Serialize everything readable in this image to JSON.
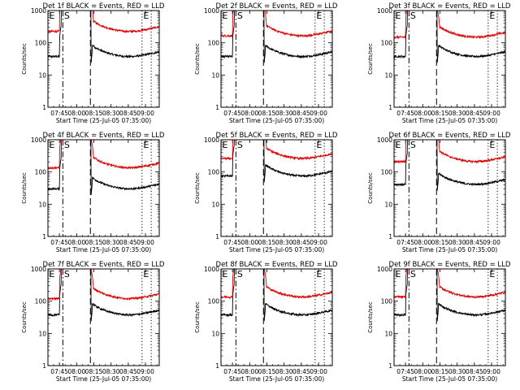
{
  "chart_data": {
    "type": "line",
    "panel_count": 9,
    "grid": "3x3",
    "y_scale": "log",
    "ylim": [
      1,
      1000
    ],
    "y_ticks": [
      1,
      10,
      100,
      1000
    ],
    "y_tick_labels": [
      "1",
      "10",
      "100",
      "1000"
    ],
    "ylabel": "Counts/sec",
    "xlabel": "Start Time (25-Jul-05 07:35:00)",
    "x_range": [
      "07:35",
      "09:12"
    ],
    "x_ticks": [
      "07:45",
      "08:00",
      "08:15",
      "08:30",
      "08:45",
      "09:00"
    ],
    "panel_titles": [
      "Det 1f BLACK = Events, RED = LLD",
      "Det 2f BLACK = Events, RED = LLD",
      "Det 3f BLACK = Events, RED = LLD",
      "Det 4f BLACK = Events, RED = LLD",
      "Det 5f BLACK = Events, RED = LLD",
      "Det 6f BLACK = Events, RED = LLD",
      "Det 7f BLACK = Events, RED = LLD",
      "Det 8f BLACK = Events, RED = LLD",
      "Det 9f BLACK = Events, RED = LLD"
    ],
    "marker_labels": [
      "E",
      "S",
      "E"
    ],
    "markers": [
      {
        "label": "E",
        "time": "07:35",
        "style": "dotted"
      },
      {
        "label": "S",
        "time": "07:48",
        "style": "dashdot"
      },
      {
        "label": "",
        "time": "08:12",
        "style": "dashed"
      },
      {
        "label": "E",
        "time": "08:57",
        "style": "dotted"
      },
      {
        "label": "",
        "time": "09:05",
        "style": "dotted"
      }
    ],
    "series_colors": {
      "Events": "#000000",
      "LLD": "#e00000"
    },
    "series": [
      {
        "name": "Events",
        "panels_level": [
          50,
          50,
          50,
          40,
          100,
          55,
          50,
          50,
          50
        ]
      },
      {
        "name": "LLD",
        "panels_level": [
          300,
          220,
          200,
          180,
          350,
          280,
          160,
          180,
          180
        ]
      }
    ]
  }
}
